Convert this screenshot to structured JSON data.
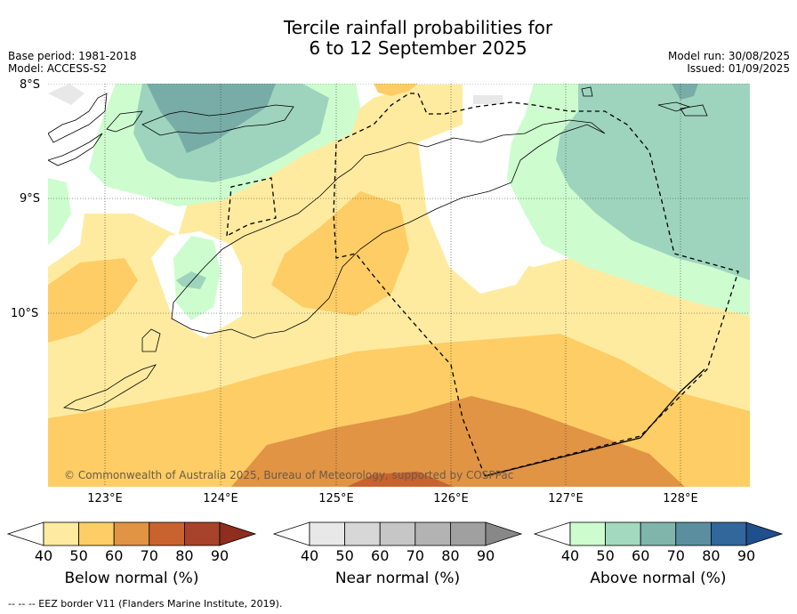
{
  "header": {
    "title_line1": "Tercile rainfall probabilities for",
    "title_line2": "6 to 12 September 2025",
    "base_period": "Base period: 1981-2018",
    "model": "Model: ACCESS-S2",
    "model_run": "Model run: 30/08/2025",
    "issued": "Issued: 01/09/2025"
  },
  "map": {
    "latitude_labels": [
      "8°S",
      "9°S",
      "10°S"
    ],
    "longitude_labels": [
      "123°E",
      "124°E",
      "125°E",
      "126°E",
      "127°E",
      "128°E"
    ],
    "copyright": "© Commonwealth of Australia 2025, Bureau of Meteorology, supported by COSPPac",
    "colors": {
      "below_40_50": "#ffeba0",
      "below_50_60": "#fecd66",
      "below_60_70": "#e09444",
      "below_70_80": "#c8632f",
      "below_80_90": "#a7432a",
      "above_40_50": "#cdfdce",
      "above_50_60": "#9ed4bd",
      "above_60_70": "#78ada7",
      "near_40_50": "#e8e8e8"
    }
  },
  "legends": [
    {
      "name": "Below normal (%)",
      "ticks": [
        "40",
        "50",
        "60",
        "70",
        "80",
        "90"
      ],
      "colors": [
        "#ffeba0",
        "#fecd66",
        "#e09444",
        "#c8632f",
        "#a7432a",
        "#8f2d1e"
      ]
    },
    {
      "name": "Near normal (%)",
      "ticks": [
        "40",
        "50",
        "60",
        "70",
        "80",
        "90"
      ],
      "colors": [
        "#e8e8e8",
        "#d7d7d7",
        "#c6c6c6",
        "#b3b3b3",
        "#a0a0a0",
        "#888888"
      ]
    },
    {
      "name": "Above normal (%)",
      "ticks": [
        "40",
        "50",
        "60",
        "70",
        "80",
        "90"
      ],
      "colors": [
        "#cdfdce",
        "#a3d9bf",
        "#80b5ab",
        "#5b8fa0",
        "#31679a",
        "#1f4f8c"
      ]
    }
  ],
  "footer": "--  --  -- EEZ border V11 (Flanders Marine Institute, 2019)."
}
